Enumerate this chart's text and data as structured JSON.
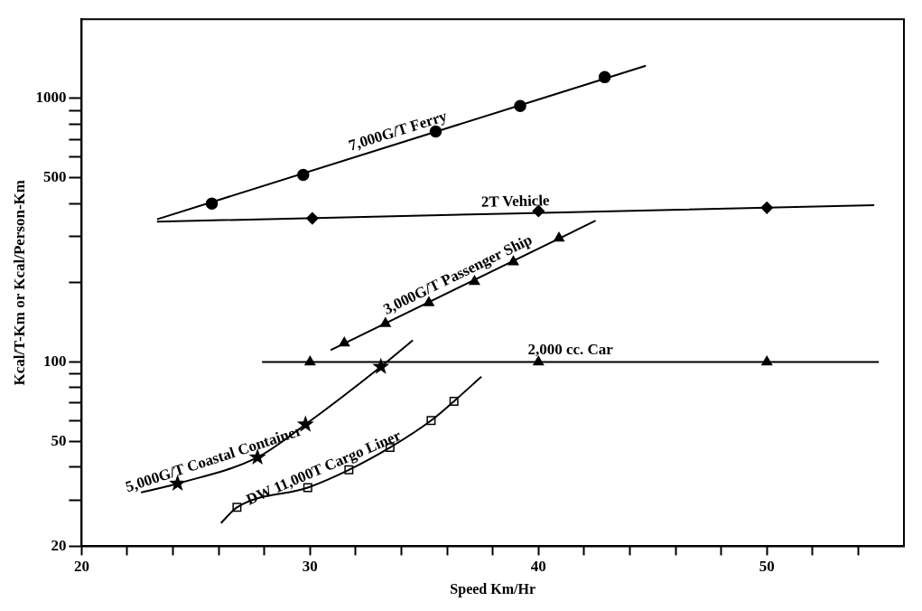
{
  "chart_data": {
    "type": "line",
    "xlabel": "Speed Km/Hr",
    "ylabel": "Kcal/T-Km or Kcal/Person-Km",
    "log": "y",
    "grid": false,
    "legend": false,
    "xlim": [
      20,
      56
    ],
    "ylim": [
      20,
      2000
    ],
    "xticks": [
      20,
      {
        "value": 22,
        "label": null
      },
      {
        "value": 24,
        "label": null
      },
      {
        "value": 26,
        "label": null
      },
      {
        "value": 28,
        "label": null
      },
      30,
      {
        "value": 32,
        "label": null
      },
      {
        "value": 34,
        "label": null
      },
      {
        "value": 36,
        "label": null
      },
      {
        "value": 38,
        "label": null
      },
      40,
      {
        "value": 42,
        "label": null
      },
      {
        "value": 44,
        "label": null
      },
      {
        "value": 46,
        "label": null
      },
      {
        "value": 48,
        "label": null
      },
      50,
      {
        "value": 52,
        "label": null
      },
      {
        "value": 54,
        "label": null
      }
    ],
    "yticks": [
      20,
      {
        "value": 30,
        "label": null
      },
      {
        "value": 40,
        "label": null
      },
      50,
      {
        "value": 60,
        "label": null
      },
      {
        "value": 70,
        "label": null
      },
      {
        "value": 80,
        "label": null
      },
      {
        "value": 90,
        "label": null
      },
      100,
      {
        "value": 200,
        "label": null
      },
      {
        "value": 300,
        "label": null
      },
      {
        "value": 400,
        "label": null
      },
      500,
      {
        "value": 600,
        "label": null
      },
      {
        "value": 700,
        "label": null
      },
      {
        "value": 800,
        "label": null
      },
      {
        "value": 900,
        "label": null
      },
      1000
    ],
    "series": [
      {
        "name": "7,000G/T Ferry",
        "marker": "none",
        "color": "#000000",
        "x": [
          23.3,
          44.7
        ],
        "values": [
          348,
          1332
        ]
      },
      {
        "type": "scatter",
        "marker": "circle",
        "color": "#000000",
        "x": [
          25.7,
          29.7,
          35.5,
          39.2,
          42.9
        ],
        "values": [
          399,
          513,
          750,
          937,
          1205
        ]
      },
      {
        "name": "2T Vehicle",
        "marker": "none",
        "color": "#000000",
        "x": [
          23.3,
          54.7
        ],
        "values": [
          341,
          394
        ]
      },
      {
        "type": "scatter",
        "marker": "diamond",
        "color": "#000000",
        "x": [
          30.1,
          40,
          50
        ],
        "values": [
          351,
          374,
          385
        ]
      },
      {
        "name": "3,000G/T Passenger Ship",
        "marker": "none",
        "color": "#000000",
        "x": [
          30.9,
          42.5
        ],
        "values": [
          111,
          344
        ]
      },
      {
        "type": "scatter",
        "marker": "triangle",
        "color": "#000000",
        "x": [
          31.5,
          33.3,
          35.2,
          37.2,
          38.9,
          40.9
        ],
        "values": [
          118,
          140,
          168,
          202,
          240,
          295
        ]
      },
      {
        "name": "2,000 cc. Car",
        "marker": "none",
        "color": "#000000",
        "x": [
          27.9,
          54.9
        ],
        "values": [
          100,
          100
        ]
      },
      {
        "type": "scatter",
        "marker": "triangle",
        "color": "#000000",
        "x": [
          30,
          40,
          50
        ],
        "values": [
          100,
          100,
          100
        ]
      },
      {
        "name": "5,000G/T Coastal Container",
        "marker": "none",
        "color": "#000000",
        "x": [
          22.6,
          24.2,
          27.7,
          29.8,
          33.1,
          34.5
        ],
        "values": [
          32,
          34.6,
          43.5,
          58,
          96,
          121
        ]
      },
      {
        "type": "scatter",
        "marker": "star",
        "color": "#000000",
        "x": [
          24.2,
          27.7,
          29.8,
          33.1
        ],
        "values": [
          34.6,
          43.5,
          58,
          96
        ]
      },
      {
        "name": "DW 11,000T Cargo Liner",
        "marker": "none",
        "color": "#000000",
        "x": [
          26.1,
          26.8,
          29.9,
          31.7,
          33.5,
          35.3,
          36.3,
          37.5
        ],
        "values": [
          24.5,
          28.1,
          33.4,
          39,
          47.4,
          60,
          71,
          88
        ]
      },
      {
        "type": "scatter",
        "marker": "square",
        "color": "#000000",
        "x": [
          26.8,
          29.9,
          31.7,
          33.5,
          35.3,
          36.3
        ],
        "values": [
          28.1,
          33.4,
          39,
          47.4,
          60,
          71
        ]
      }
    ]
  }
}
